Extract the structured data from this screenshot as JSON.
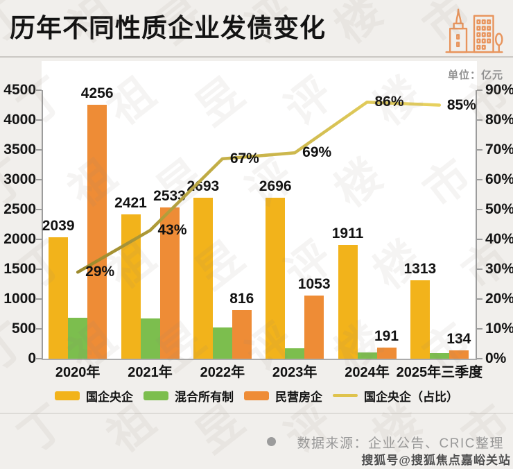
{
  "header": {
    "title": "历年不同性质企业发债变化",
    "unit_label": "单位：亿元"
  },
  "chart_data": {
    "type": "bar+line",
    "categories": [
      "2020年",
      "2021年",
      "2022年",
      "2023年",
      "2024年",
      "2025年三季度"
    ],
    "series": [
      {
        "name": "国企央企",
        "type": "bar",
        "color": "#F2B31B",
        "values": [
          2039,
          2421,
          2693,
          2696,
          1911,
          1313
        ],
        "show_labels": true
      },
      {
        "name": "混合所有制",
        "type": "bar",
        "color": "#7CBE4E",
        "values": [
          690,
          670,
          520,
          180,
          100,
          90
        ],
        "show_labels": false,
        "estimated": true
      },
      {
        "name": "民营房企",
        "type": "bar",
        "color": "#EE8C36",
        "values": [
          4256,
          2533,
          816,
          1053,
          191,
          134
        ],
        "show_labels": true
      },
      {
        "name": "国企央企（占比）",
        "type": "line",
        "axis": "right",
        "color": "#CDB13E",
        "values": [
          29,
          43,
          67,
          69,
          86,
          85
        ],
        "labels": [
          "29%",
          "43%",
          "67%",
          "69%",
          "86%",
          "85%"
        ]
      }
    ],
    "left_axis": {
      "min": 0,
      "max": 4500,
      "step": 500,
      "ticks": [
        "4500",
        "4000",
        "3500",
        "3000",
        "2500",
        "2000",
        "1500",
        "1000",
        "500",
        "0"
      ]
    },
    "right_axis": {
      "min": 0,
      "max": 90,
      "step": 10,
      "ticks": [
        "90%",
        "80%",
        "70%",
        "60%",
        "50%",
        "40%",
        "30%",
        "20%",
        "10%",
        "0%"
      ]
    },
    "legend_position": "bottom",
    "grid": false
  },
  "legend": {
    "items": [
      {
        "label": "国企央企",
        "swatch": "bar",
        "color": "#F2B31B"
      },
      {
        "label": "混合所有制",
        "swatch": "bar",
        "color": "#7CBE4E"
      },
      {
        "label": "民营房企",
        "swatch": "bar",
        "color": "#EE8C36"
      },
      {
        "label": "国企央企（占比）",
        "swatch": "line",
        "color": "#DFC34D"
      }
    ]
  },
  "footer": {
    "source": "数据来源：企业公告、CRIC整理",
    "sohu": "搜狐号@搜狐焦点嘉峪关站"
  },
  "watermark": "丁祖昱评楼市"
}
